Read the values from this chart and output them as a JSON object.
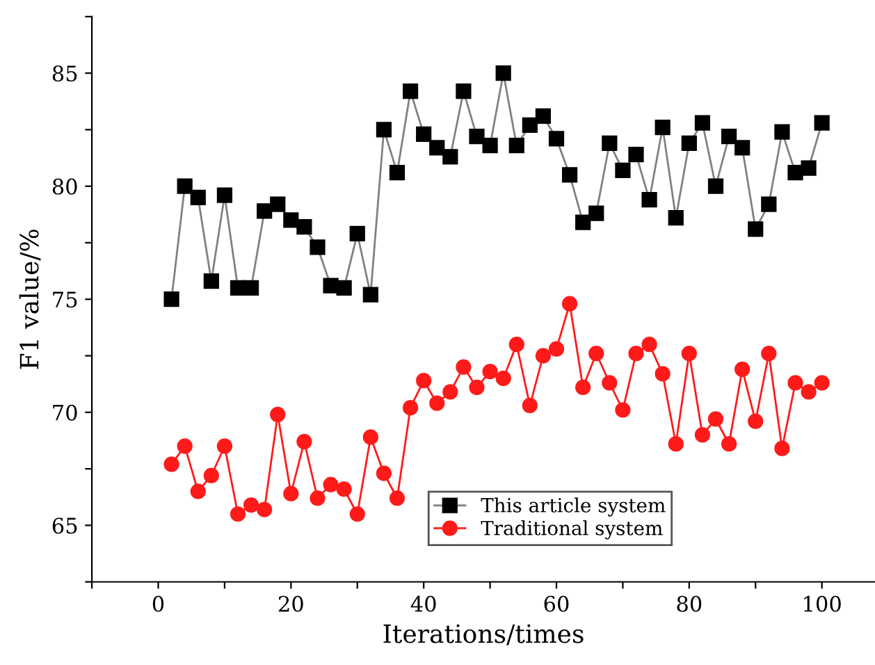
{
  "chart_data": {
    "type": "line",
    "xlabel": "Iterations/times",
    "ylabel": "F1 value/%",
    "x": [
      2,
      4,
      6,
      8,
      10,
      12,
      14,
      16,
      18,
      20,
      22,
      24,
      26,
      28,
      30,
      32,
      34,
      36,
      38,
      40,
      42,
      44,
      46,
      48,
      50,
      52,
      54,
      56,
      58,
      60,
      62,
      64,
      66,
      68,
      70,
      72,
      74,
      76,
      78,
      80,
      82,
      84,
      86,
      88,
      90,
      92,
      94,
      96,
      98,
      100
    ],
    "series": [
      {
        "name": "This article system",
        "color": "#000000",
        "marker": "square",
        "values": [
          75.0,
          80.0,
          79.5,
          75.8,
          79.6,
          75.5,
          75.5,
          78.9,
          79.2,
          78.5,
          78.2,
          77.3,
          75.6,
          75.5,
          77.9,
          75.2,
          82.5,
          80.6,
          84.2,
          82.3,
          81.7,
          81.3,
          84.2,
          82.2,
          81.8,
          85.0,
          81.8,
          82.7,
          83.1,
          82.1,
          80.5,
          78.4,
          78.8,
          81.9,
          80.7,
          81.4,
          79.4,
          82.6,
          78.6,
          81.9,
          82.8,
          80.0,
          82.2,
          81.7,
          78.1,
          79.2,
          82.4,
          80.6,
          80.8,
          82.8
        ]
      },
      {
        "name": "Traditional system",
        "color": "#ff1a1a",
        "marker": "circle",
        "values": [
          67.7,
          68.5,
          66.5,
          67.2,
          68.5,
          65.5,
          65.9,
          65.7,
          69.9,
          66.4,
          68.7,
          66.2,
          66.8,
          66.6,
          65.5,
          68.9,
          67.3,
          66.2,
          70.2,
          71.4,
          70.4,
          70.9,
          72.0,
          71.1,
          71.8,
          71.5,
          73.0,
          70.3,
          72.5,
          72.8,
          74.8,
          71.1,
          72.6,
          71.3,
          70.1,
          72.6,
          73.0,
          71.7,
          68.6,
          72.6,
          69.0,
          69.7,
          68.6,
          71.9,
          69.6,
          72.6,
          68.4,
          71.3,
          70.9,
          71.3
        ]
      }
    ],
    "xlim": [
      -10,
      108
    ],
    "ylim": [
      62.5,
      87.5
    ],
    "xticks": [
      {
        "value": -10,
        "label": null
      },
      0,
      {
        "value": 10,
        "label": null
      },
      20,
      {
        "value": 30,
        "label": null
      },
      40,
      {
        "value": 50,
        "label": null
      },
      60,
      {
        "value": 70,
        "label": null
      },
      80,
      {
        "value": 90,
        "label": null
      },
      100
    ],
    "yticks": [
      {
        "value": 62.5,
        "label": null
      },
      65,
      {
        "value": 67.5,
        "label": null
      },
      70,
      {
        "value": 72.5,
        "label": null
      },
      75,
      {
        "value": 77.5,
        "label": null
      },
      80,
      {
        "value": 82.5,
        "label": null
      },
      85,
      {
        "value": 87.5,
        "label": null
      }
    ],
    "grid": false,
    "legend": "bottom right",
    "line_style": "solid"
  }
}
